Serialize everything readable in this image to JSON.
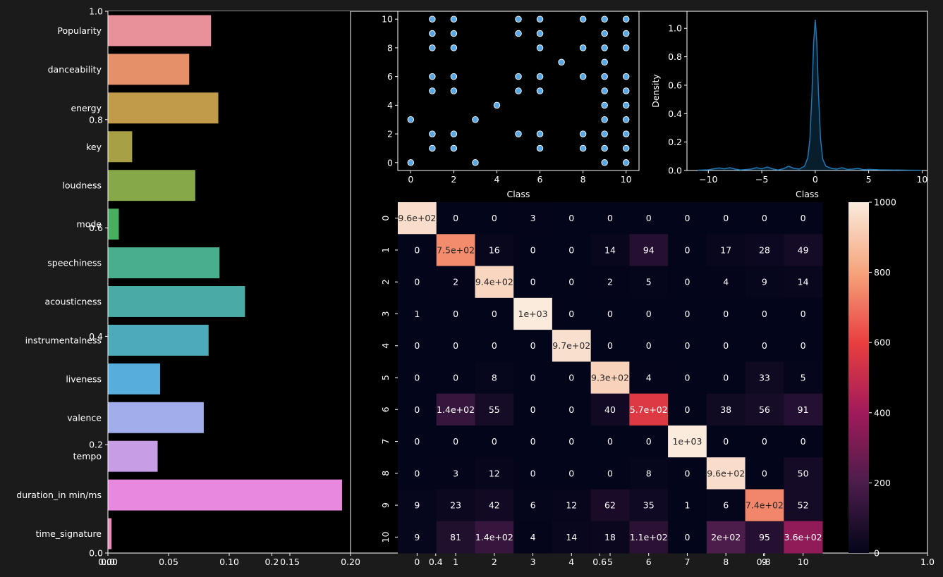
{
  "figure": {
    "background": "#1b1b1b",
    "axes_background": "#000000",
    "text_color": "#ffffff"
  },
  "chart_data": [
    {
      "type": "axes",
      "role": "background-axes",
      "xticks": [
        "0.0",
        "0.2",
        "0.4",
        "0.6",
        "0.8",
        "1.0"
      ],
      "yticks": [
        "0.0",
        "0.2",
        "0.4",
        "0.6",
        "0.8",
        "1.0"
      ],
      "xlim": [
        0,
        1
      ],
      "ylim": [
        0,
        1
      ]
    },
    {
      "type": "bar",
      "orientation": "horizontal",
      "categories": [
        "Popularity",
        "danceability",
        "energy",
        "key",
        "loudness",
        "mode",
        "speechiness",
        "acousticness",
        "instrumentalness",
        "liveness",
        "valence",
        "tempo",
        "duration_in min/ms",
        "time_signature"
      ],
      "values": [
        0.085,
        0.067,
        0.091,
        0.02,
        0.072,
        0.009,
        0.092,
        0.113,
        0.083,
        0.043,
        0.079,
        0.041,
        0.193,
        0.003
      ],
      "colors": [
        "#e8919b",
        "#e6906a",
        "#c19b4a",
        "#a8a045",
        "#87a848",
        "#48af5e",
        "#49ae8d",
        "#4aaaa4",
        "#4caabb",
        "#57aedd",
        "#a2adeb",
        "#c79de6",
        "#e888df",
        "#e68eb9"
      ],
      "xticks": [
        "0.00",
        "0.05",
        "0.10",
        "0.15",
        "0.20"
      ],
      "xlim": [
        0,
        0.2
      ]
    },
    {
      "type": "scatter",
      "xlabel": "Class",
      "xlim": [
        -0.6,
        10.6
      ],
      "ylim": [
        -0.55,
        10.55
      ],
      "xticks": [
        "0",
        "2",
        "4",
        "6",
        "8",
        "10"
      ],
      "yticks": [
        "0",
        "2",
        "4",
        "6",
        "8",
        "10"
      ],
      "color": "#5aa7e6",
      "points": [
        [
          0,
          0
        ],
        [
          0,
          3
        ],
        [
          1,
          1
        ],
        [
          1,
          2
        ],
        [
          1,
          5
        ],
        [
          1,
          6
        ],
        [
          1,
          8
        ],
        [
          1,
          9
        ],
        [
          1,
          10
        ],
        [
          2,
          1
        ],
        [
          2,
          2
        ],
        [
          2,
          5
        ],
        [
          2,
          6
        ],
        [
          2,
          8
        ],
        [
          2,
          9
        ],
        [
          2,
          10
        ],
        [
          3,
          0
        ],
        [
          3,
          3
        ],
        [
          4,
          4
        ],
        [
          5,
          2
        ],
        [
          5,
          5
        ],
        [
          5,
          6
        ],
        [
          5,
          9
        ],
        [
          5,
          10
        ],
        [
          6,
          1
        ],
        [
          6,
          2
        ],
        [
          6,
          5
        ],
        [
          6,
          6
        ],
        [
          6,
          8
        ],
        [
          6,
          9
        ],
        [
          6,
          10
        ],
        [
          7,
          7
        ],
        [
          8,
          1
        ],
        [
          8,
          2
        ],
        [
          8,
          6
        ],
        [
          8,
          8
        ],
        [
          8,
          10
        ],
        [
          9,
          0
        ],
        [
          9,
          1
        ],
        [
          9,
          2
        ],
        [
          9,
          3
        ],
        [
          9,
          4
        ],
        [
          9,
          5
        ],
        [
          9,
          6
        ],
        [
          9,
          7
        ],
        [
          9,
          8
        ],
        [
          9,
          9
        ],
        [
          9,
          10
        ],
        [
          10,
          0
        ],
        [
          10,
          1
        ],
        [
          10,
          2
        ],
        [
          10,
          3
        ],
        [
          10,
          4
        ],
        [
          10,
          5
        ],
        [
          10,
          6
        ],
        [
          10,
          8
        ],
        [
          10,
          9
        ],
        [
          10,
          10
        ]
      ]
    },
    {
      "type": "area",
      "xlabel": "Class",
      "ylabel": "Density",
      "xlim": [
        -12,
        10.5
      ],
      "ylim": [
        0,
        1.12
      ],
      "xticks": [
        "−10",
        "−5",
        "0",
        "5",
        "10"
      ],
      "yticks": [
        "0.0",
        "0.2",
        "0.4",
        "0.6",
        "0.8",
        "1.0"
      ],
      "color": "#1f77b4",
      "x": [
        -11,
        -10,
        -9.5,
        -9,
        -8.5,
        -8,
        -7.5,
        -7,
        -6,
        -5.5,
        -5,
        -4.5,
        -4,
        -3.5,
        -3,
        -2.5,
        -2,
        -1.5,
        -1,
        -0.7,
        -0.5,
        -0.3,
        -0.15,
        0,
        0.15,
        0.3,
        0.5,
        0.7,
        1,
        1.5,
        2,
        2.5,
        3,
        3.5,
        4,
        4.5,
        5,
        6,
        7,
        8,
        9,
        10
      ],
      "y": [
        0.002,
        0.005,
        0.012,
        0.018,
        0.012,
        0.02,
        0.01,
        0.004,
        0.01,
        0.02,
        0.012,
        0.025,
        0.012,
        0.004,
        0.012,
        0.03,
        0.015,
        0.01,
        0.03,
        0.09,
        0.22,
        0.55,
        0.9,
        1.06,
        0.9,
        0.55,
        0.22,
        0.08,
        0.03,
        0.015,
        0.01,
        0.02,
        0.008,
        0.01,
        0.015,
        0.006,
        0.008,
        0.005,
        0.004,
        0.003,
        0.002,
        0.001
      ]
    },
    {
      "type": "heatmap",
      "row_labels": [
        "0",
        "1",
        "2",
        "3",
        "4",
        "5",
        "6",
        "7",
        "8",
        "9",
        "10"
      ],
      "col_labels": [
        "0",
        "1",
        "2",
        "3",
        "4",
        "5",
        "6",
        "7",
        "8",
        "9",
        "10"
      ],
      "values": [
        [
          960,
          0,
          0,
          3,
          0,
          0,
          0,
          0,
          0,
          0,
          0
        ],
        [
          0,
          750,
          16,
          0,
          0,
          14,
          94,
          0,
          17,
          28,
          49
        ],
        [
          0,
          2,
          940,
          0,
          0,
          2,
          5,
          0,
          4,
          9,
          14
        ],
        [
          1,
          0,
          0,
          1000,
          0,
          0,
          0,
          0,
          0,
          0,
          0
        ],
        [
          0,
          0,
          0,
          0,
          970,
          0,
          0,
          0,
          0,
          0,
          0
        ],
        [
          0,
          0,
          8,
          0,
          0,
          930,
          4,
          0,
          0,
          33,
          5
        ],
        [
          0,
          140,
          55,
          0,
          0,
          40,
          570,
          0,
          38,
          56,
          91
        ],
        [
          0,
          0,
          0,
          0,
          0,
          0,
          0,
          1000,
          0,
          0,
          0
        ],
        [
          0,
          3,
          12,
          0,
          0,
          0,
          8,
          0,
          960,
          0,
          50
        ],
        [
          9,
          23,
          42,
          6,
          12,
          62,
          35,
          1,
          6,
          740,
          52
        ],
        [
          9,
          81,
          140,
          4,
          14,
          18,
          110,
          0,
          200,
          95,
          360
        ]
      ],
      "annotations": [
        [
          "9.6e+02",
          "0",
          "0",
          "3",
          "0",
          "0",
          "0",
          "0",
          "0",
          "0",
          "0"
        ],
        [
          "0",
          "7.5e+02",
          "16",
          "0",
          "0",
          "14",
          "94",
          "0",
          "17",
          "28",
          "49"
        ],
        [
          "0",
          "2",
          "9.4e+02",
          "0",
          "0",
          "2",
          "5",
          "0",
          "4",
          "9",
          "14"
        ],
        [
          "1",
          "0",
          "0",
          "1e+03",
          "0",
          "0",
          "0",
          "0",
          "0",
          "0",
          "0"
        ],
        [
          "0",
          "0",
          "0",
          "0",
          "9.7e+02",
          "0",
          "0",
          "0",
          "0",
          "0",
          "0"
        ],
        [
          "0",
          "0",
          "8",
          "0",
          "0",
          "9.3e+02",
          "4",
          "0",
          "0",
          "33",
          "5"
        ],
        [
          "0",
          "1.4e+02",
          "55",
          "0",
          "0",
          "40",
          "5.7e+02",
          "0",
          "38",
          "56",
          "91"
        ],
        [
          "0",
          "0",
          "0",
          "0",
          "0",
          "0",
          "0",
          "1e+03",
          "0",
          "0",
          "0"
        ],
        [
          "0",
          "3",
          "12",
          "0",
          "0",
          "0",
          "8",
          "0",
          "9.6e+02",
          "0",
          "50"
        ],
        [
          "9",
          "23",
          "42",
          "6",
          "12",
          "62",
          "35",
          "1",
          "6",
          "7.4e+02",
          "52"
        ],
        [
          "9",
          "81",
          "1.4e+02",
          "4",
          "14",
          "18",
          "1.1e+02",
          "0",
          "2e+02",
          "95",
          "3.6e+02"
        ]
      ],
      "vmin": 0,
      "vmax": 1000,
      "colorbar_ticks": [
        "0",
        "200",
        "400",
        "600",
        "800",
        "1000"
      ],
      "colormap": "rocket"
    }
  ]
}
